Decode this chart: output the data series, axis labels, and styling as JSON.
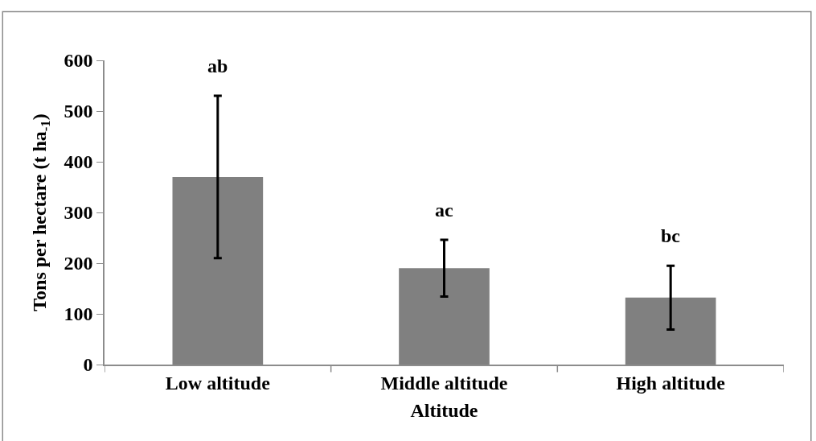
{
  "chart_data": {
    "type": "bar",
    "xlabel": "Altitude",
    "ylabel": "Tons per hectare (t ha$_{-1}$)",
    "categories": [
      "Low altitude",
      "Middle altitude",
      "High altitude"
    ],
    "values": [
      370,
      190,
      132
    ],
    "errors": [
      160,
      56,
      63
    ],
    "color": "#808080",
    "ylim": [
      0,
      600
    ],
    "yticks": [
      0,
      100,
      200,
      300,
      400,
      500,
      600
    ],
    "annotations": [
      "ab",
      "ac",
      "bc"
    ]
  }
}
